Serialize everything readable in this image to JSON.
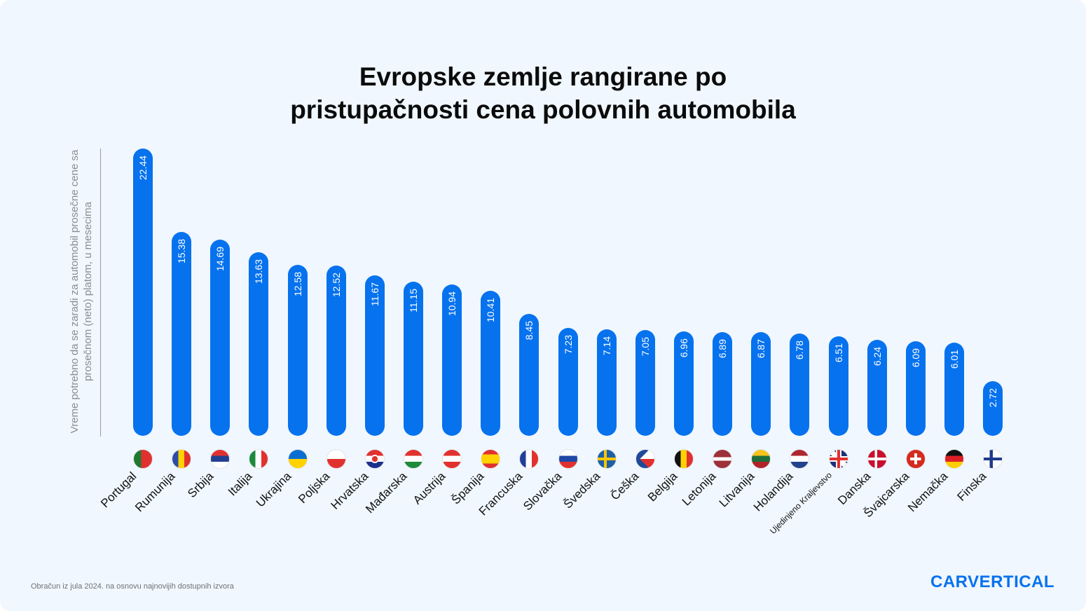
{
  "title_line1": "Evropske zemlje rangirane po",
  "title_line2": "pristupačnosti cena polovnih automobila",
  "footer": "Obračun iz jula 2024. na osnovu najnovijih dostupnih izvora",
  "logo": "CARVERTICAL",
  "chart_data": {
    "type": "bar",
    "title": "Evropske zemlje rangirane po pristupačnosti cena polovnih automobila",
    "ylabel": "Vreme potrebno da se zaradi za automobil prosečne cene sa prosečnom (neto) platom, u mesecima",
    "xlabel": "",
    "grid": false,
    "bar_color": "#0672ee",
    "categories": [
      "Portugal",
      "Rumunija",
      "Srbija",
      "Italija",
      "Ukrajina",
      "Poljska",
      "Hrvatska",
      "Mađarska",
      "Austrija",
      "Španija",
      "Francuska",
      "Slovačka",
      "Švedska",
      "Češka",
      "Belgija",
      "Letonija",
      "Litvanija",
      "Holandija",
      "Ujedinjeno Kraljevstvo",
      "Danska",
      "Švajcarska",
      "Nemačka",
      "Finska"
    ],
    "values": [
      22.44,
      15.38,
      14.69,
      13.63,
      12.58,
      12.52,
      11.67,
      11.15,
      10.94,
      10.41,
      8.45,
      7.23,
      7.14,
      7.05,
      6.96,
      6.89,
      6.87,
      6.78,
      6.51,
      6.24,
      6.09,
      6.01,
      2.72
    ],
    "value_labels": [
      "22.44",
      "15.38",
      "14.69",
      "13.63",
      "12.58",
      "12.52",
      "11.67",
      "11.15",
      "10.94",
      "10.41",
      "8.45",
      "7.23",
      "7.14",
      "7.05",
      "6.96",
      "6.89",
      "6.87",
      "6.78",
      "6.51",
      "6.24",
      "6.09",
      "6.01",
      "2.72"
    ],
    "flag_icons": [
      "flag-portugal-icon",
      "flag-romania-icon",
      "flag-serbia-icon",
      "flag-italy-icon",
      "flag-ukraine-icon",
      "flag-poland-icon",
      "flag-croatia-icon",
      "flag-hungary-icon",
      "flag-austria-icon",
      "flag-spain-icon",
      "flag-france-icon",
      "flag-slovakia-icon",
      "flag-sweden-icon",
      "flag-czechia-icon",
      "flag-belgium-icon",
      "flag-latvia-icon",
      "flag-lithuania-icon",
      "flag-netherlands-icon",
      "flag-uk-icon",
      "flag-denmark-icon",
      "flag-switzerland-icon",
      "flag-germany-icon",
      "flag-finland-icon"
    ]
  }
}
